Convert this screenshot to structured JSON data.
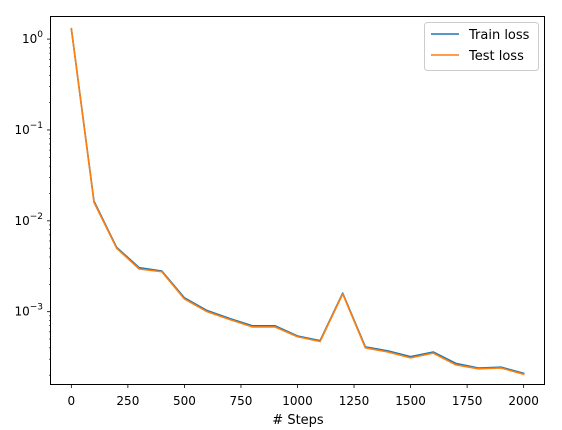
{
  "chart_data": {
    "type": "line",
    "title": "",
    "xlabel": "# Steps",
    "ylabel": "",
    "yscale": "log",
    "xlim": [
      -90,
      2090
    ],
    "ylim": [
      0.00016,
      1.75
    ],
    "grid": false,
    "legend_position": "top-right",
    "xticks": [
      0,
      250,
      500,
      750,
      1000,
      1250,
      1500,
      1750,
      2000
    ],
    "xtick_labels": [
      "0",
      "250",
      "500",
      "750",
      "1000",
      "1250",
      "1500",
      "1750",
      "2000"
    ],
    "yticks": [
      0.001,
      0.01,
      0.1,
      1
    ],
    "ytick_labels": [
      {
        "base": "10",
        "exp": "−3"
      },
      {
        "base": "10",
        "exp": "−2"
      },
      {
        "base": "10",
        "exp": "−1"
      },
      {
        "base": "10",
        "exp": "0"
      }
    ],
    "x": [
      0,
      100,
      200,
      300,
      400,
      500,
      600,
      700,
      800,
      900,
      1000,
      1100,
      1200,
      1300,
      1400,
      1500,
      1600,
      1700,
      1800,
      1900,
      2000
    ],
    "series": [
      {
        "name": "Train loss",
        "color": "#1f77b4",
        "values": [
          1.3,
          0.0165,
          0.0051,
          0.00305,
          0.0028,
          0.00142,
          0.00103,
          0.00084,
          0.0007,
          0.0007,
          0.00054,
          0.00048,
          0.0016,
          0.00041,
          0.00037,
          0.00032,
          0.00036,
          0.00027,
          0.00024,
          0.000245,
          0.00021
        ]
      },
      {
        "name": "Test loss",
        "color": "#ff7f0e",
        "values": [
          1.3,
          0.016,
          0.005,
          0.00295,
          0.00275,
          0.00138,
          0.001,
          0.00082,
          0.00068,
          0.00068,
          0.00053,
          0.00047,
          0.00157,
          0.0004,
          0.00036,
          0.00031,
          0.00035,
          0.00026,
          0.000235,
          0.00024,
          0.000205
        ]
      }
    ]
  }
}
